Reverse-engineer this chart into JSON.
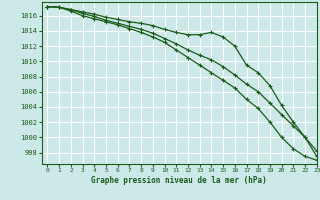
{
  "xlabel": "Graphe pression niveau de la mer (hPa)",
  "ylim": [
    996.5,
    1017.8
  ],
  "xlim": [
    -0.5,
    23
  ],
  "yticks": [
    998,
    1000,
    1002,
    1004,
    1006,
    1008,
    1010,
    1012,
    1014,
    1016
  ],
  "xticks": [
    0,
    1,
    2,
    3,
    4,
    5,
    6,
    7,
    8,
    9,
    10,
    11,
    12,
    13,
    14,
    15,
    16,
    17,
    18,
    19,
    20,
    21,
    22,
    23
  ],
  "bg_color": "#cce8e8",
  "grid_color": "#ffffff",
  "line_color": "#1a5c1a",
  "series1": [
    1017.2,
    1017.1,
    1016.8,
    1016.5,
    1016.2,
    1015.8,
    1015.5,
    1015.2,
    1015.0,
    1014.7,
    1014.2,
    1013.8,
    1013.5,
    1013.5,
    1013.8,
    1013.2,
    1012.0,
    1009.5,
    1008.5,
    1006.8,
    1004.2,
    1002.0,
    1000.0,
    997.5
  ],
  "series2": [
    1017.2,
    1017.1,
    1016.8,
    1016.3,
    1015.9,
    1015.4,
    1015.0,
    1014.6,
    1014.2,
    1013.7,
    1013.0,
    1012.3,
    1011.5,
    1010.8,
    1010.2,
    1009.3,
    1008.2,
    1007.0,
    1006.0,
    1004.5,
    1003.0,
    1001.5,
    1000.0,
    998.2
  ],
  "series3": [
    1017.2,
    1017.1,
    1016.6,
    1016.0,
    1015.6,
    1015.2,
    1014.8,
    1014.3,
    1013.8,
    1013.2,
    1012.5,
    1011.5,
    1010.5,
    1009.5,
    1008.5,
    1007.5,
    1006.5,
    1005.0,
    1003.8,
    1002.0,
    1000.0,
    998.5,
    997.5,
    997.0
  ],
  "marker": "+",
  "markersize": 3.0,
  "linewidth": 0.9
}
